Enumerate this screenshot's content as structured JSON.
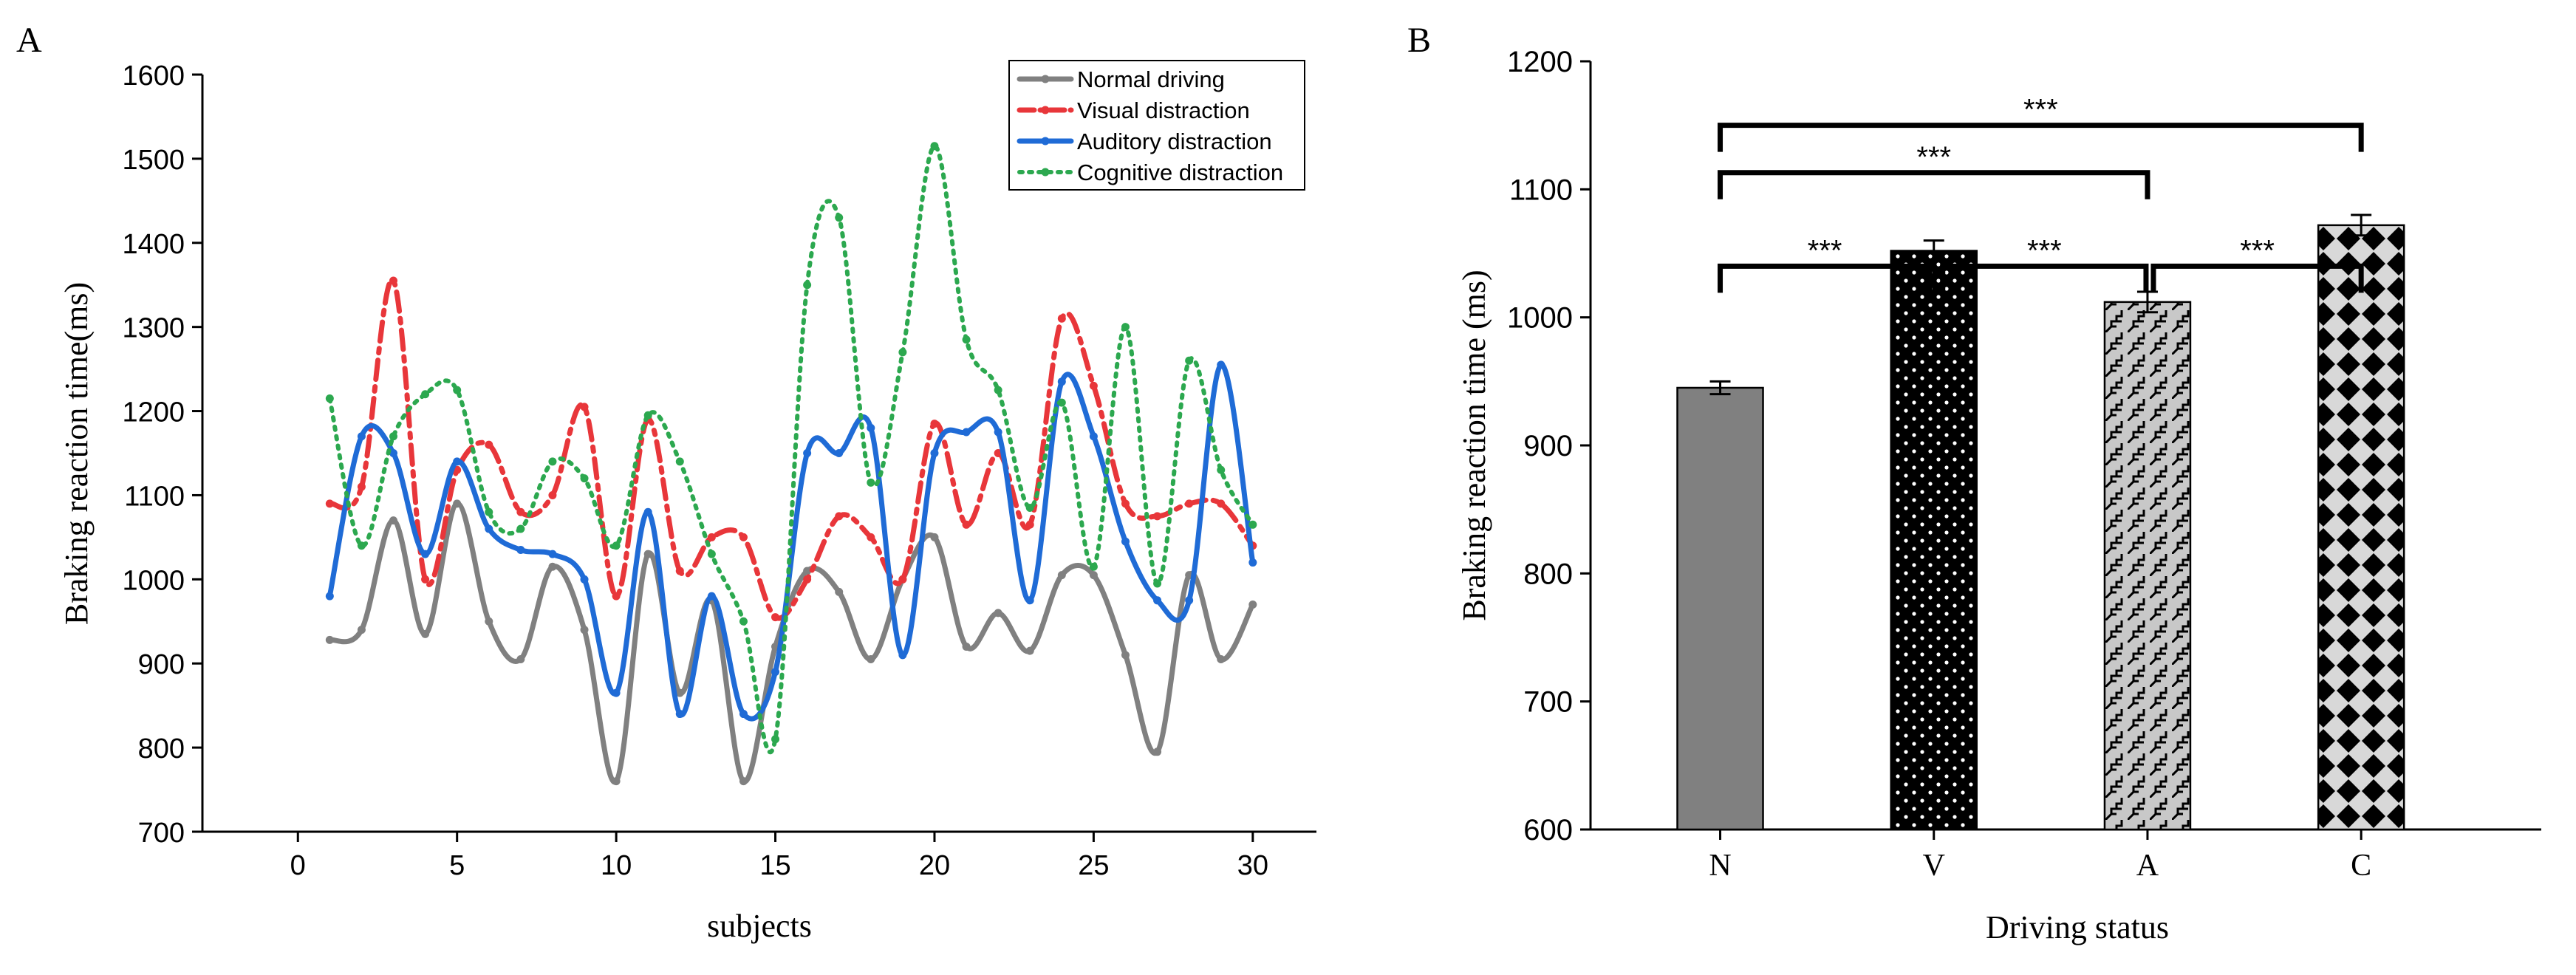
{
  "panel_a": {
    "label": "A",
    "chart_data": {
      "type": "line",
      "title": "",
      "xlabel": "subjects",
      "ylabel": "Braking reaction time(ms)",
      "xlim": [
        -3,
        32
      ],
      "ylim": [
        700,
        1600
      ],
      "xticks": [
        0,
        5,
        10,
        15,
        20,
        25,
        30
      ],
      "yticks": [
        700,
        800,
        900,
        1000,
        1100,
        1200,
        1300,
        1400,
        1500,
        1600
      ],
      "x": [
        1,
        2,
        3,
        4,
        5,
        6,
        7,
        8,
        9,
        10,
        11,
        12,
        13,
        14,
        15,
        16,
        17,
        18,
        19,
        20,
        21,
        22,
        23,
        24,
        25,
        26,
        27,
        28,
        29,
        30
      ],
      "series": [
        {
          "name": "Normal driving",
          "color": "#808080",
          "style": "solid",
          "values": [
            928,
            940,
            1070,
            935,
            1090,
            950,
            905,
            1015,
            940,
            760,
            1030,
            865,
            975,
            760,
            920,
            1010,
            985,
            905,
            1000,
            1050,
            920,
            960,
            915,
            1005,
            1005,
            910,
            795,
            1005,
            905,
            970
          ]
        },
        {
          "name": "Visual distraction",
          "color": "#e8363a",
          "style": "dashdot",
          "values": [
            1090,
            1110,
            1355,
            1000,
            1130,
            1160,
            1080,
            1100,
            1205,
            980,
            1190,
            1010,
            1050,
            1050,
            955,
            1000,
            1075,
            1050,
            1000,
            1185,
            1065,
            1150,
            1065,
            1310,
            1230,
            1090,
            1075,
            1090,
            1090,
            1040
          ]
        },
        {
          "name": "Auditory distraction",
          "color": "#1f6bd6",
          "style": "solid",
          "values": [
            980,
            1170,
            1150,
            1030,
            1140,
            1060,
            1035,
            1030,
            1000,
            865,
            1080,
            840,
            980,
            840,
            890,
            1150,
            1150,
            1180,
            910,
            1150,
            1175,
            1175,
            975,
            1235,
            1170,
            1045,
            975,
            975,
            1255,
            1020
          ]
        },
        {
          "name": "Cognitive distraction",
          "color": "#2ca84f",
          "style": "dotted",
          "values": [
            1215,
            1040,
            1170,
            1220,
            1225,
            1080,
            1060,
            1140,
            1120,
            1040,
            1195,
            1140,
            1030,
            950,
            810,
            1350,
            1430,
            1115,
            1270,
            1515,
            1285,
            1225,
            1085,
            1210,
            1015,
            1300,
            995,
            1260,
            1130,
            1065
          ]
        }
      ]
    }
  },
  "panel_b": {
    "label": "B",
    "chart_data": {
      "type": "bar",
      "title": "",
      "xlabel": "Driving status",
      "ylabel": "Braking reaction time (ms)",
      "ylim": [
        600,
        1200
      ],
      "yticks": [
        600,
        700,
        800,
        900,
        1000,
        1100,
        1200
      ],
      "categories": [
        "N",
        "V",
        "A",
        "C"
      ],
      "values": [
        945,
        1052,
        1012,
        1072
      ],
      "errors": [
        5,
        8,
        8,
        8
      ],
      "patterns": [
        "solid-gray",
        "white-dots-on-black",
        "zigzag-gray",
        "diamonds-on-black"
      ],
      "significance": [
        {
          "from": "N",
          "to": "V",
          "label": "***"
        },
        {
          "from": "V",
          "to": "A",
          "label": "***"
        },
        {
          "from": "A",
          "to": "C",
          "label": "***"
        },
        {
          "from": "N",
          "to": "A",
          "label": "***"
        },
        {
          "from": "N",
          "to": "C",
          "label": "***"
        }
      ]
    }
  }
}
